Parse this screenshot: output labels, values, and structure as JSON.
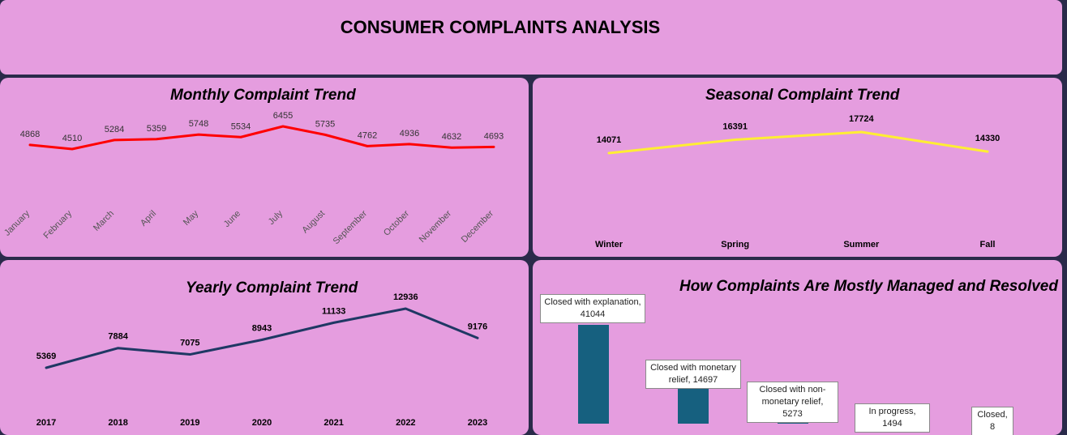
{
  "header": {
    "title": "CONSUMER COMPLAINTS ANALYSIS"
  },
  "colors": {
    "background": "#e59ddf",
    "frame": "#2a2a4a",
    "monthly_line": "#ff0000",
    "seasonal_line": "#ffee33",
    "yearly_line": "#1f3864",
    "bars": "#16607f"
  },
  "chart_data": [
    {
      "id": "monthly",
      "type": "line",
      "title": "Monthly Complaint Trend",
      "categories": [
        "January",
        "February",
        "March",
        "April",
        "May",
        "June",
        "July",
        "August",
        "September",
        "October",
        "November",
        "December"
      ],
      "values": [
        4868,
        4510,
        5284,
        5359,
        5748,
        5534,
        6455,
        5735,
        4762,
        4936,
        4632,
        4693
      ],
      "grid": false,
      "legend": "none"
    },
    {
      "id": "seasonal",
      "type": "line",
      "title": "Seasonal Complaint Trend",
      "categories": [
        "Winter",
        "Spring",
        "Summer",
        "Fall"
      ],
      "values": [
        14071,
        16391,
        17724,
        14330
      ],
      "grid": false,
      "legend": "none"
    },
    {
      "id": "yearly",
      "type": "line",
      "title": "Yearly Complaint Trend",
      "categories": [
        "2017",
        "2018",
        "2019",
        "2020",
        "2021",
        "2022",
        "2023"
      ],
      "values": [
        5369,
        7884,
        7075,
        8943,
        11133,
        12936,
        9176
      ],
      "grid": false,
      "legend": "none"
    },
    {
      "id": "resolution",
      "type": "bar",
      "title": "How Complaints Are Mostly Managed and Resolved",
      "categories": [
        "Closed with explanation",
        "Closed with monetary relief",
        "Closed with non-monetary relief",
        "In progress",
        "Closed"
      ],
      "values": [
        41044,
        14697,
        5273,
        1494,
        8
      ],
      "data_labels": [
        "Closed with explanation, 41044",
        "Closed with monetary relief, 14697",
        "Closed with non-monetary relief, 5273",
        "In progress, 1494",
        "Closed, 8"
      ],
      "grid": false,
      "legend": "none"
    }
  ]
}
